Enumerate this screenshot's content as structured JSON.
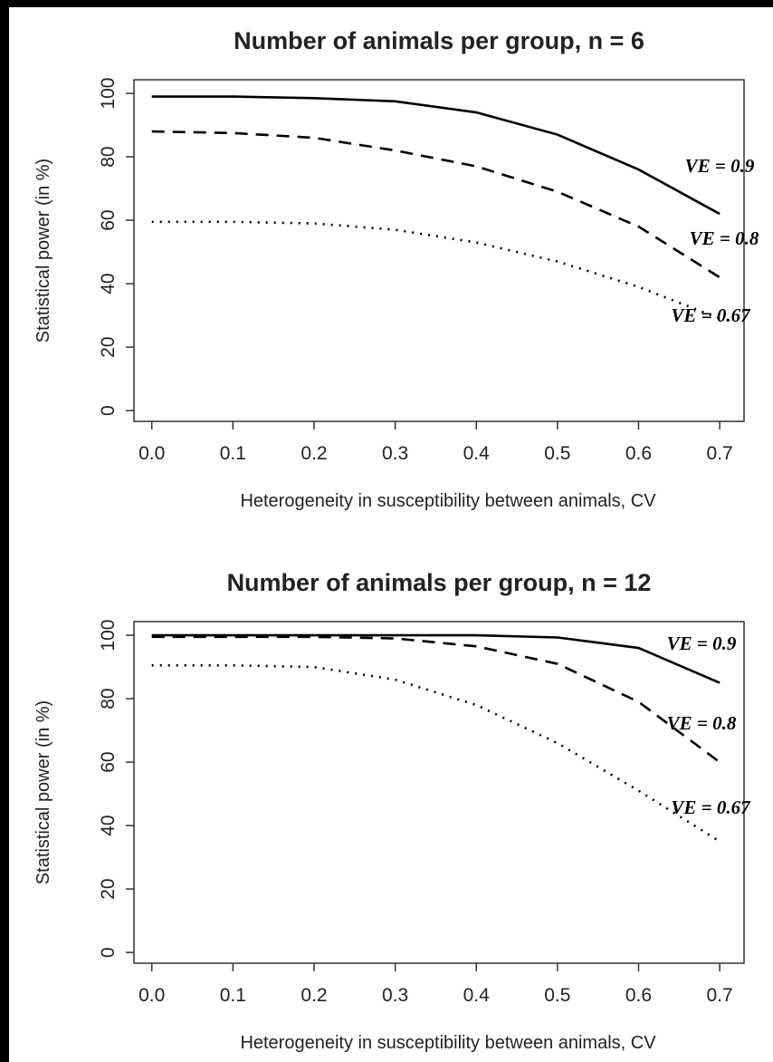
{
  "chart_data": [
    {
      "type": "line",
      "title": "Number of animals per group, n = 6",
      "xlabel": "Heterogeneity in susceptibility between animals, CV",
      "ylabel": "Statistical power (in %)",
      "x": [
        0,
        0.1,
        0.2,
        0.3,
        0.4,
        0.5,
        0.6,
        0.7
      ],
      "series": [
        {
          "name": "VE = 0.9",
          "color": "#000000",
          "linestyle": "solid",
          "values": [
            99,
            99,
            98.5,
            97.5,
            94,
            87,
            76,
            62
          ]
        },
        {
          "name": "VE = 0.8",
          "color": "#000000",
          "linestyle": "dashed",
          "values": [
            88,
            87.5,
            86,
            82,
            77,
            69,
            58,
            42
          ]
        },
        {
          "name": "VE = 0.67",
          "color": "#000000",
          "linestyle": "dotted",
          "values": [
            59.5,
            59.5,
            59,
            57,
            53,
            47,
            39,
            29
          ]
        }
      ],
      "xlim": [
        -0.022,
        0.73
      ],
      "xticks": [
        {
          "value": 0,
          "label": "0.0"
        },
        0.1,
        0.2,
        0.3,
        0.4,
        0.5,
        0.6,
        0.7
      ],
      "ylim": [
        -3.4,
        104.3
      ],
      "yticks": [
        0,
        20,
        40,
        60,
        80,
        100
      ]
    },
    {
      "type": "line",
      "title": "Number of animals per group, n = 12",
      "xlabel": "Heterogeneity in susceptibility between animals, CV",
      "ylabel": "Statistical power (in %)",
      "x": [
        0,
        0.1,
        0.2,
        0.3,
        0.4,
        0.5,
        0.6,
        0.7
      ],
      "series": [
        {
          "name": "VE = 0.9",
          "color": "#000000",
          "linestyle": "solid",
          "values": [
            100,
            100,
            100,
            100,
            100,
            99.3,
            96,
            85
          ]
        },
        {
          "name": "VE = 0.8",
          "color": "#000000",
          "linestyle": "dashed",
          "values": [
            99.5,
            99.5,
            99.5,
            99,
            96.5,
            91,
            79,
            60
          ]
        },
        {
          "name": "VE = 0.67",
          "color": "#000000",
          "linestyle": "dotted",
          "values": [
            90.5,
            90.5,
            90,
            86,
            78,
            66,
            51,
            35
          ]
        }
      ],
      "xlim": [
        -0.022,
        0.73
      ],
      "xticks": [
        {
          "value": 0,
          "label": "0.0"
        },
        0.1,
        0.2,
        0.3,
        0.4,
        0.5,
        0.6,
        0.7
      ],
      "ylim": [
        -3.4,
        104.3
      ],
      "yticks": [
        0,
        20,
        40,
        60,
        80,
        100
      ]
    }
  ]
}
